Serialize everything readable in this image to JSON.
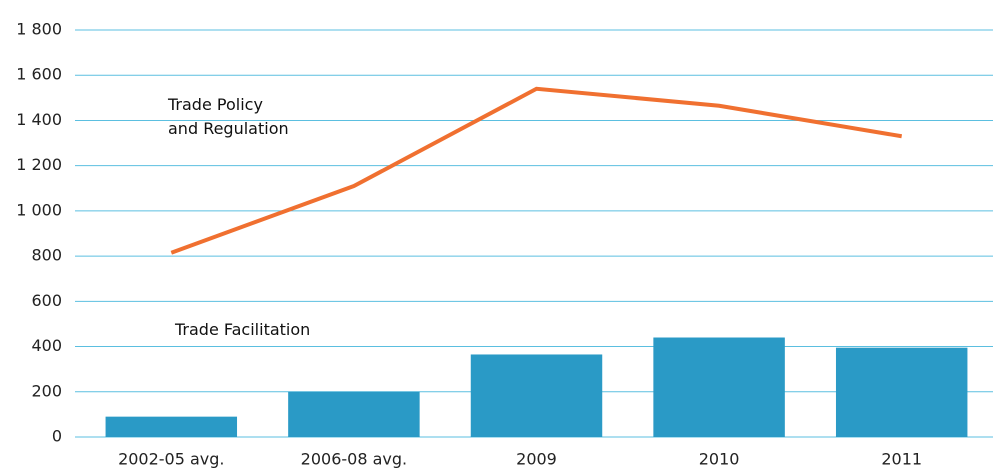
{
  "chart_data": {
    "type": "bar-line",
    "categories": [
      "2002-05 avg.",
      "2006-08 avg.",
      "2009",
      "2010",
      "2011"
    ],
    "series": [
      {
        "name": "Trade Facilitation",
        "type": "bar",
        "color": "#2a9ac6",
        "values": [
          90,
          200,
          365,
          440,
          395
        ]
      },
      {
        "name": "Trade Policy\nand Regulation",
        "type": "line",
        "color": "#f07030",
        "values": [
          815,
          1110,
          1540,
          1465,
          1330
        ]
      }
    ],
    "ylim": [
      0,
      1800
    ],
    "yticks": [
      0,
      200,
      400,
      600,
      800,
      {
        "value": 1000,
        "label": "1 000"
      },
      {
        "value": 1200,
        "label": "1 200"
      },
      {
        "value": 1400,
        "label": "1 400"
      },
      {
        "value": 1600,
        "label": "1 600"
      },
      {
        "value": 1800,
        "label": "1 800"
      }
    ],
    "grid": true,
    "grid_color": "#5bbfe0"
  }
}
